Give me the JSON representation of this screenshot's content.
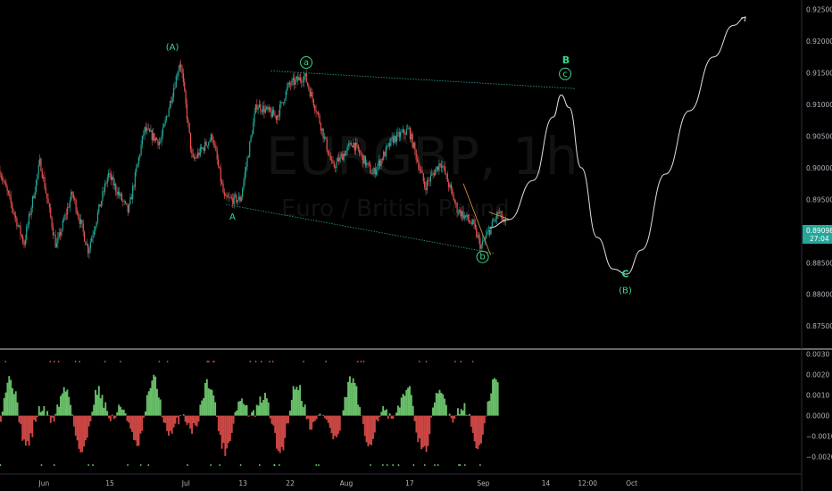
{
  "chart_data": {
    "type": "candlestick",
    "watermark": {
      "symbol": "EURGBP, 1h",
      "name": "Euro / British Pound"
    },
    "price_axis": {
      "ticks": [
        "0.92500",
        "0.92000",
        "0.91500",
        "0.91000",
        "0.90500",
        "0.90000",
        "0.89500",
        "0.88500",
        "0.88000",
        "0.87500"
      ],
      "ylim": [
        0.8715,
        0.9265
      ],
      "last_price": "0.89098",
      "countdown": "27:04",
      "last_price_color": "#26a69a"
    },
    "indicator_axis": {
      "ticks": [
        "0.0030",
        "0.0020",
        "0.0010",
        "0.0000",
        "−0.0010",
        "−0.0020"
      ],
      "ylim": [
        -0.0028,
        0.0032
      ]
    },
    "x_ticks": [
      "Jun",
      "15",
      "Jul",
      "13",
      "22",
      "Aug",
      "17",
      "Sep",
      "14",
      "12:00",
      "Oct"
    ],
    "wave_labels": [
      {
        "text": "(A)",
        "price": 0.9186,
        "t": 0.215
      },
      {
        "text": "a",
        "circled": true,
        "price": 0.9162,
        "t": 0.382
      },
      {
        "text": "A",
        "price": 0.8918,
        "t": 0.29
      },
      {
        "text": "b",
        "circled": true,
        "price": 0.8855,
        "t": 0.602
      },
      {
        "text": "B",
        "price": 0.9165,
        "t": 0.706
      },
      {
        "text": "c",
        "circled": true,
        "price": 0.9144,
        "t": 0.705
      },
      {
        "text": "C",
        "price": 0.8827,
        "t": 0.78
      },
      {
        "text": "(B)",
        "price": 0.8802,
        "t": 0.78
      }
    ],
    "channel_upper": [
      [
        0.338,
        0.9153
      ],
      [
        0.718,
        0.9125
      ]
    ],
    "channel_lower": [
      [
        0.282,
        0.8942
      ],
      [
        0.616,
        0.8865
      ]
    ],
    "projection": [
      [
        0.61,
        0.8905
      ],
      [
        0.635,
        0.8918
      ],
      [
        0.665,
        0.898
      ],
      [
        0.69,
        0.908
      ],
      [
        0.7,
        0.9115
      ],
      [
        0.71,
        0.9095
      ],
      [
        0.725,
        0.9
      ],
      [
        0.745,
        0.889
      ],
      [
        0.765,
        0.884
      ],
      [
        0.782,
        0.8832
      ],
      [
        0.8,
        0.887
      ],
      [
        0.83,
        0.899
      ],
      [
        0.86,
        0.909
      ],
      [
        0.89,
        0.9175
      ],
      [
        0.915,
        0.9225
      ],
      [
        0.93,
        0.9238
      ]
    ],
    "colors": {
      "up": "#26a69a",
      "down": "#ef5350",
      "hist_up": "#7be07b",
      "hist_down": "#ef5350",
      "channel": "#26a69a",
      "projection": "#e0e0e0"
    }
  }
}
